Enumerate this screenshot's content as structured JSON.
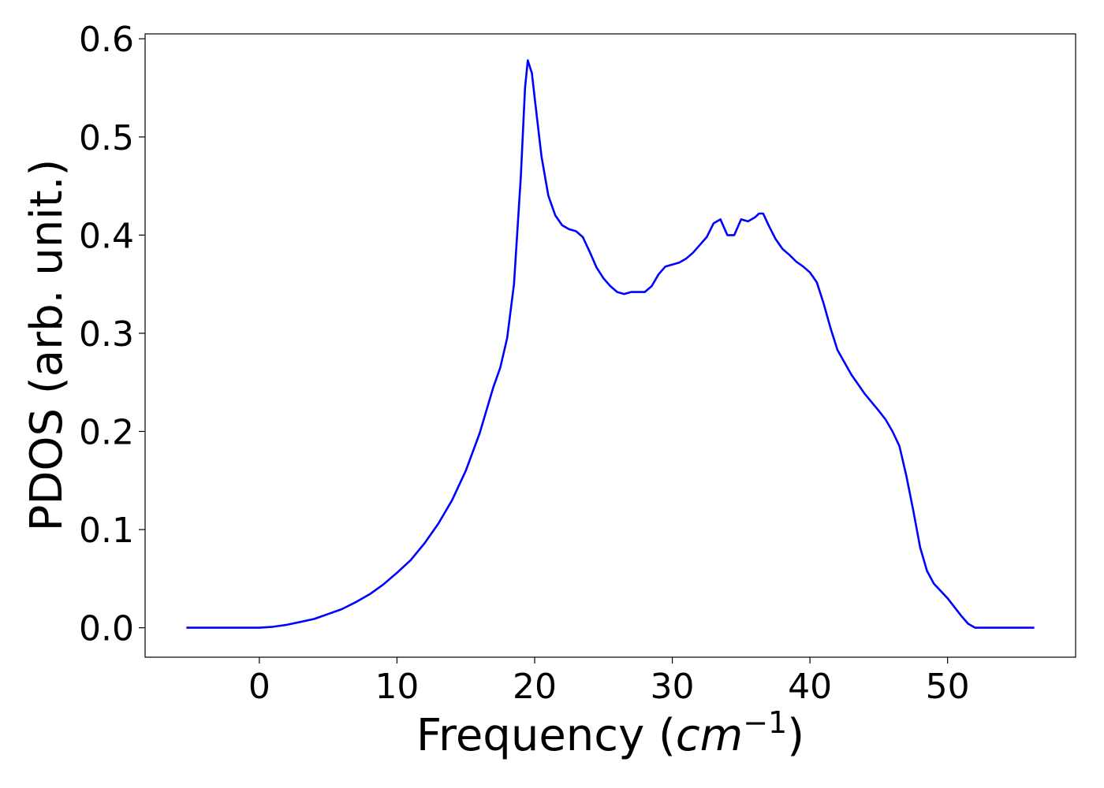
{
  "chart_data": {
    "type": "line",
    "title": "",
    "xlabel_main": "Frequency (",
    "xlabel_unit": "cm",
    "xlabel_exp": "−1",
    "xlabel_close": ")",
    "ylabel": "PDOS (arb. unit.)",
    "xlim": [
      -8.3,
      59.3
    ],
    "ylim": [
      -0.03,
      0.605
    ],
    "xticks": [
      0,
      10,
      20,
      30,
      40,
      50
    ],
    "xtick_labels": [
      "0",
      "10",
      "20",
      "30",
      "40",
      "50"
    ],
    "yticks": [
      0.0,
      0.1,
      0.2,
      0.3,
      0.4,
      0.5,
      0.6
    ],
    "ytick_labels": [
      "0.0",
      "0.1",
      "0.2",
      "0.3",
      "0.4",
      "0.5",
      "0.6"
    ],
    "grid": false,
    "series": [
      {
        "color": "#0000ff",
        "x": [
          -5.3,
          -3,
          -1,
          0,
          1,
          1.5,
          2,
          3,
          4,
          5,
          6,
          7,
          8,
          9,
          10,
          11,
          12,
          13,
          14,
          15,
          16,
          17,
          17.5,
          18,
          18.5,
          19,
          19.3,
          19.5,
          19.8,
          20,
          20.5,
          21,
          21.5,
          22,
          22.5,
          23,
          23.5,
          24,
          24.5,
          25,
          25.5,
          26,
          26.5,
          27,
          27.5,
          28,
          28.5,
          29,
          29.5,
          30,
          30.5,
          31,
          31.5,
          32,
          32.5,
          33,
          33.5,
          34,
          34.5,
          35,
          35.5,
          36,
          36.3,
          36.6,
          37,
          37.5,
          38,
          38.5,
          39,
          39.5,
          40,
          40.5,
          41,
          41.5,
          42,
          43,
          44,
          45,
          45.5,
          46,
          46.5,
          47,
          47.5,
          48,
          48.5,
          49,
          50,
          51,
          51.5,
          52,
          53,
          54,
          55,
          56.3
        ],
        "y": [
          0.0,
          0.0,
          0.0,
          0.0,
          0.001,
          0.002,
          0.003,
          0.006,
          0.009,
          0.014,
          0.019,
          0.026,
          0.034,
          0.044,
          0.056,
          0.069,
          0.086,
          0.106,
          0.13,
          0.16,
          0.198,
          0.245,
          0.265,
          0.295,
          0.35,
          0.46,
          0.55,
          0.578,
          0.565,
          0.54,
          0.48,
          0.44,
          0.42,
          0.41,
          0.406,
          0.404,
          0.398,
          0.383,
          0.367,
          0.356,
          0.348,
          0.342,
          0.34,
          0.342,
          0.342,
          0.342,
          0.348,
          0.36,
          0.368,
          0.37,
          0.372,
          0.376,
          0.382,
          0.39,
          0.398,
          0.412,
          0.416,
          0.4,
          0.4,
          0.416,
          0.414,
          0.418,
          0.422,
          0.422,
          0.41,
          0.396,
          0.386,
          0.38,
          0.373,
          0.368,
          0.362,
          0.352,
          0.33,
          0.305,
          0.283,
          0.258,
          0.238,
          0.221,
          0.212,
          0.2,
          0.185,
          0.155,
          0.12,
          0.082,
          0.058,
          0.045,
          0.03,
          0.012,
          0.004,
          0.0,
          0.0,
          0.0,
          0.0,
          0.0
        ]
      }
    ]
  }
}
